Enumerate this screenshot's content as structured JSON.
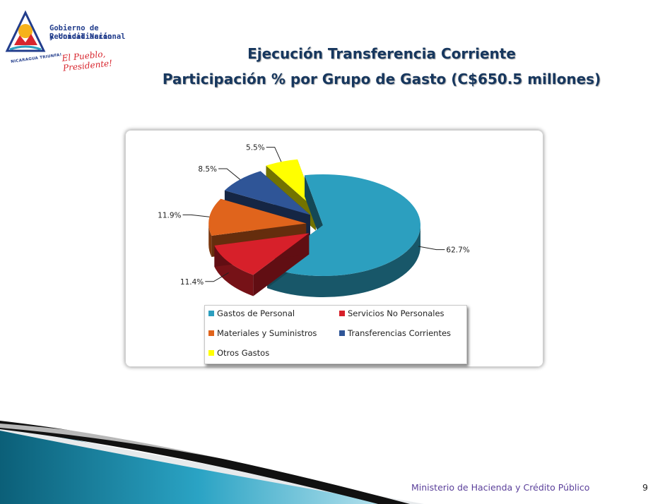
{
  "logo": {
    "line1": "Gobierno de Reconciliación",
    "line2": "y Unidad Nacional",
    "slogan": "El Pueblo, Presidente!",
    "country_text": "NICARAGUA TRIUNFA!"
  },
  "title": {
    "line1": "Ejecución Transferencia Corriente",
    "line2": "Participación % por Grupo de Gasto (C$650.5 millones)"
  },
  "chart_data": {
    "type": "pie",
    "title": "Participación % por Grupo de Gasto (C$650.5 millones)",
    "categories": [
      "Gastos de  Personal",
      "Servicios No Personales",
      "Materiales y Suministros",
      "Transferencias Corrientes",
      "Otros Gastos"
    ],
    "values": [
      62.7,
      11.4,
      11.9,
      8.5,
      5.5
    ],
    "labels": [
      "62.7%",
      "11.4%",
      "11.9%",
      "8.5%",
      "5.5%"
    ],
    "colors": [
      "#2c9fbf",
      "#d7202a",
      "#e0641c",
      "#2f5597",
      "#ffff00"
    ],
    "legend_position": "bottom",
    "style": "3d-exploded"
  },
  "footer": {
    "ministry": "Ministerio de Hacienda y Crédito Público",
    "page": "9"
  }
}
